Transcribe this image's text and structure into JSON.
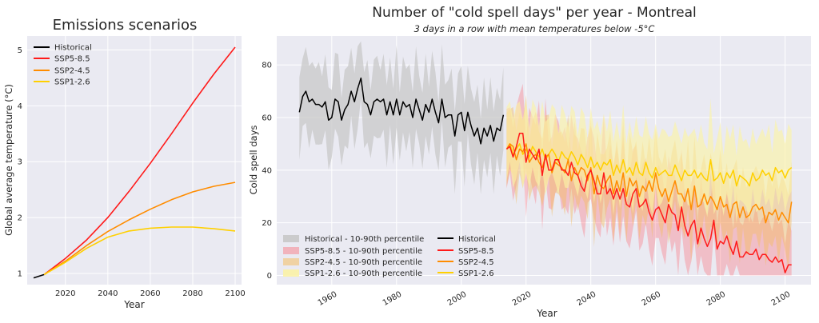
{
  "colors": {
    "panel_bg": "#eaeaf2",
    "grid": "#ffffff",
    "historical": "#000000",
    "ssp585": "#ff1a1a",
    "ssp245": "#ff8c00",
    "ssp126": "#ffd000"
  },
  "chart_data": [
    {
      "type": "line",
      "title": "Emissions scenarios",
      "xlabel": "Year",
      "ylabel": "Global average temperature (°C)",
      "xlim": [
        2002,
        2103
      ],
      "ylim": [
        0.8,
        5.25
      ],
      "xticks": [
        2020,
        2040,
        2060,
        2080,
        2100
      ],
      "yticks": [
        1,
        2,
        3,
        4,
        5
      ],
      "grid": true,
      "legend_position": "top-left",
      "series": [
        {
          "name": "Historical",
          "color": "#000000",
          "x": [
            2005,
            2010
          ],
          "y": [
            0.92,
            0.98
          ]
        },
        {
          "name": "SSP5-8.5",
          "color": "#ff1a1a",
          "x": [
            2010,
            2020,
            2030,
            2040,
            2050,
            2060,
            2070,
            2080,
            2090,
            2100
          ],
          "y": [
            0.98,
            1.27,
            1.6,
            2.0,
            2.47,
            2.97,
            3.5,
            4.05,
            4.57,
            5.05
          ]
        },
        {
          "name": "SSP2-4.5",
          "color": "#ff8c00",
          "x": [
            2010,
            2020,
            2030,
            2040,
            2050,
            2060,
            2070,
            2080,
            2090,
            2100
          ],
          "y": [
            0.98,
            1.22,
            1.5,
            1.75,
            1.96,
            2.15,
            2.32,
            2.46,
            2.56,
            2.63
          ]
        },
        {
          "name": "SSP1-2.6",
          "color": "#ffd000",
          "x": [
            2010,
            2020,
            2030,
            2040,
            2050,
            2060,
            2070,
            2080,
            2090,
            2100
          ],
          "y": [
            0.98,
            1.2,
            1.45,
            1.65,
            1.76,
            1.81,
            1.83,
            1.83,
            1.8,
            1.76
          ]
        }
      ]
    },
    {
      "type": "line",
      "title": "Number of \"cold spell days\" per year - Montreal",
      "subtitle": "3 days in a row with mean temperatures below -5°C",
      "xlabel": "Year",
      "ylabel": "Cold spell days",
      "xlim": [
        1943,
        2108
      ],
      "ylim": [
        -3.5,
        91
      ],
      "xticks": [
        1960,
        1980,
        2000,
        2020,
        2040,
        2060,
        2080,
        2100
      ],
      "yticks": [
        0,
        20,
        40,
        60,
        80
      ],
      "grid": true,
      "legend_position": "bottom-left",
      "legend_bands": [
        "Historical - 10-90th percentile",
        "SSP5-8.5 - 10-90th percentile",
        "SSP2-4.5 - 10-90th percentile",
        "SSP1-2.6 - 10-90th percentile"
      ],
      "legend_lines": [
        "Historical",
        "SSP5-8.5",
        "SSP2-4.5",
        "SSP1-2.6"
      ],
      "series": [
        {
          "name": "Historical",
          "color": "#000000",
          "x_start": 1950,
          "values": [
            62,
            68,
            70,
            66,
            67,
            65,
            65,
            64,
            66,
            59,
            60,
            67,
            66,
            59,
            63,
            65,
            70,
            66,
            71,
            75,
            66,
            65,
            61,
            66,
            67,
            66,
            67,
            61,
            66,
            61,
            67,
            61,
            66,
            64,
            65,
            60,
            67,
            63,
            59,
            65,
            62,
            67,
            62,
            58,
            67,
            60,
            61,
            61,
            53,
            61,
            62,
            55,
            62,
            57,
            53,
            56,
            50,
            56,
            53,
            57,
            51,
            56,
            55,
            61
          ]
        },
        {
          "name": "SSP5-8.5",
          "color": "#ff1a1a",
          "x_start": 2014,
          "values": [
            48,
            49,
            45,
            49,
            54,
            54,
            43,
            48,
            46,
            44,
            48,
            38,
            46,
            40,
            40,
            44,
            44,
            40,
            40,
            38,
            43,
            39,
            38,
            34,
            32,
            38,
            40,
            36,
            31,
            31,
            39,
            31,
            33,
            29,
            33,
            29,
            33,
            27,
            26,
            31,
            33,
            26,
            27,
            29,
            24,
            21,
            25,
            26,
            23,
            20,
            27,
            24,
            23,
            17,
            26,
            19,
            15,
            19,
            21,
            12,
            18,
            14,
            11,
            14,
            21,
            10,
            13,
            12,
            15,
            11,
            8,
            13,
            7,
            7,
            9,
            8,
            8,
            10,
            6,
            8,
            8,
            6,
            5,
            7,
            5,
            6,
            1,
            4,
            4
          ]
        },
        {
          "name": "SSP2-4.5",
          "color": "#ff8c00",
          "x_start": 2014,
          "values": [
            48,
            50,
            49,
            44,
            48,
            47,
            50,
            43,
            45,
            46,
            43,
            41,
            45,
            46,
            39,
            43,
            42,
            41,
            39,
            44,
            36,
            41,
            38,
            41,
            40,
            36,
            41,
            31,
            38,
            34,
            33,
            36,
            38,
            31,
            36,
            32,
            39,
            30,
            37,
            34,
            36,
            30,
            34,
            32,
            36,
            32,
            39,
            33,
            30,
            33,
            28,
            32,
            36,
            31,
            31,
            28,
            33,
            25,
            34,
            26,
            27,
            31,
            27,
            30,
            28,
            25,
            30,
            26,
            27,
            22,
            27,
            28,
            22,
            26,
            22,
            23,
            26,
            27,
            25,
            26,
            20,
            24,
            23,
            25,
            21,
            24,
            22,
            20,
            28
          ]
        },
        {
          "name": "SSP1-2.6",
          "color": "#ffd000",
          "x_start": 2014,
          "values": [
            48,
            50,
            46,
            48,
            50,
            46,
            48,
            45,
            49,
            47,
            45,
            48,
            44,
            46,
            48,
            46,
            43,
            47,
            45,
            44,
            47,
            45,
            42,
            46,
            44,
            41,
            45,
            41,
            43,
            40,
            43,
            42,
            44,
            38,
            42,
            39,
            44,
            39,
            41,
            38,
            43,
            39,
            38,
            43,
            39,
            37,
            41,
            38,
            39,
            40,
            38,
            38,
            42,
            39,
            36,
            40,
            38,
            38,
            40,
            37,
            39,
            37,
            36,
            44,
            36,
            37,
            39,
            35,
            39,
            37,
            40,
            34,
            38,
            37,
            36,
            34,
            39,
            36,
            37,
            40,
            38,
            39,
            36,
            41,
            39,
            40,
            37,
            40,
            41
          ]
        }
      ]
    }
  ]
}
